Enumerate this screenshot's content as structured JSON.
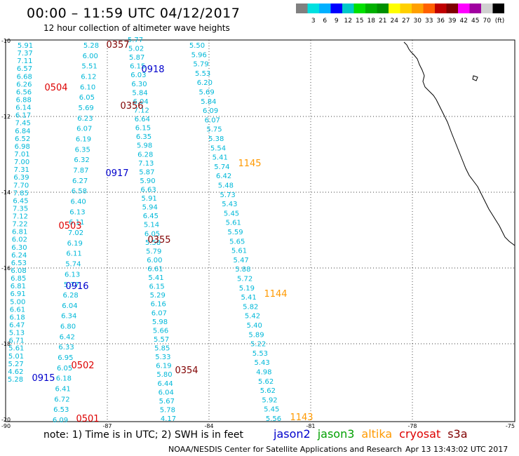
{
  "header": {
    "title": "00:00 – 11:59 UTC 04/12/2017",
    "subtitle": "12 hour collection of altimeter wave heights"
  },
  "colorbar": {
    "colors": [
      "#808080",
      "#00e0e0",
      "#00b0ff",
      "#0000ff",
      "#00c8c8",
      "#00e000",
      "#00b000",
      "#009000",
      "#ffff00",
      "#ffd000",
      "#ffa000",
      "#ff6000",
      "#c00000",
      "#800000",
      "#ff00ff",
      "#a000a0",
      "#d0d0d0",
      "#000000"
    ],
    "labels": [
      "3",
      "6",
      "9",
      "12",
      "15",
      "18",
      "21",
      "24",
      "27",
      "30",
      "33",
      "36",
      "39",
      "42",
      "45",
      "70"
    ],
    "unit": "(ft)"
  },
  "axes": {
    "lat_labels": [
      "-10",
      "-12",
      "-14",
      "-16",
      "-18",
      "-20"
    ],
    "lon_labels": [
      "-90",
      "-87",
      "-84",
      "-81",
      "-78",
      "-75"
    ]
  },
  "passes": [
    {
      "label": "0357",
      "color": "#800000"
    },
    {
      "label": "0918",
      "color": "#0000cc"
    },
    {
      "label": "0504",
      "color": "#dd0000"
    },
    {
      "label": "0356",
      "color": "#800000"
    },
    {
      "label": "1145",
      "color": "#ff9900"
    },
    {
      "label": "0917",
      "color": "#0000cc"
    },
    {
      "label": "0503",
      "color": "#dd0000"
    },
    {
      "label": "0355",
      "color": "#800000"
    },
    {
      "label": "0916",
      "color": "#0000cc"
    },
    {
      "label": "1144",
      "color": "#ff9900"
    },
    {
      "label": "0502",
      "color": "#dd0000"
    },
    {
      "label": "0354",
      "color": "#800000"
    },
    {
      "label": "0915",
      "color": "#0000cc"
    },
    {
      "label": "1143",
      "color": "#ff9900"
    },
    {
      "label": "0501",
      "color": "#dd0000"
    }
  ],
  "tracks": {
    "a": [
      "5.91",
      "7.37",
      "7.11",
      "6.57",
      "6.68",
      "6.26",
      "6.56",
      "6.88",
      "6.14",
      "6.17",
      "7.45",
      "6.84",
      "6.52",
      "6.98",
      "7.01",
      "7.00",
      "7.31",
      "6.39",
      "7.70",
      "7.85",
      "6.45",
      "7.35",
      "7.12",
      "7.22",
      "6.81",
      "6.02",
      "6.30",
      "6.24",
      "6.53",
      "6.08",
      "6.85",
      "6.81",
      "6.91",
      "5.00",
      "6.61",
      "6.18",
      "6.47",
      "5.13",
      "6.71",
      "5.61",
      "5.01",
      "5.27",
      "4.62",
      "5.28"
    ],
    "b": [
      "5.28",
      "6.00",
      "5.51",
      "6.12",
      "6.10",
      "6.05",
      "5.69",
      "6.23",
      "6.07",
      "6.19",
      "6.35",
      "6.32",
      "7.87",
      "6.27",
      "6.58",
      "6.40",
      "6.13",
      "6.11",
      "7.02",
      "6.19",
      "6.11",
      "5.74",
      "6.13",
      "5.77",
      "6.28",
      "6.04",
      "6.34",
      "6.80",
      "6.42",
      "6.33",
      "6.95",
      "6.05",
      "6.18",
      "6.41",
      "6.72",
      "6.53",
      "6.09"
    ],
    "c": [
      "5.77",
      "5.02",
      "5.87",
      "6.15",
      "6.03",
      "6.30",
      "5.84",
      "6.04",
      "7.12",
      "6.64",
      "6.15",
      "6.35",
      "5.98",
      "6.28",
      "7.13",
      "5.87",
      "5.90",
      "6.63",
      "5.91",
      "5.94",
      "6.45",
      "5.14",
      "6.05",
      "5.58",
      "5.79",
      "6.00",
      "6.61",
      "5.41",
      "6.15",
      "5.29",
      "6.16",
      "6.07",
      "5.98",
      "5.66",
      "5.57",
      "5.85",
      "5.33",
      "6.19",
      "5.80",
      "6.44",
      "6.04",
      "5.67",
      "5.78",
      "4.17"
    ],
    "d": [
      "5.50",
      "5.96",
      "5.79",
      "5.53",
      "6.20",
      "5.69",
      "5.84",
      "6.09",
      "6.07",
      "5.75",
      "5.38",
      "5.54",
      "5.41",
      "5.74",
      "6.42",
      "5.48",
      "5.73",
      "5.43",
      "5.45",
      "5.61",
      "5.59",
      "5.65",
      "5.61",
      "5.47",
      "5.88",
      "5.72",
      "5.19",
      "5.41",
      "5.82",
      "5.42",
      "5.40",
      "5.89",
      "5.22",
      "5.53",
      "5.43",
      "4.98",
      "5.62",
      "5.62",
      "5.92",
      "5.45",
      "5.56"
    ]
  },
  "footer": {
    "note": "note: 1) Time is in UTC; 2) SWH is in feet",
    "credit": "NOAA/NESDIS Center for Satellite Applications and Research",
    "timestamp": "Apr 13 13:43:02 UTC 2017",
    "legend": [
      {
        "name": "jason2",
        "color": "#0000cc"
      },
      {
        "name": "jason3",
        "color": "#00a000"
      },
      {
        "name": "altika",
        "color": "#ff9900"
      },
      {
        "name": "cryosat",
        "color": "#dd0000"
      },
      {
        "name": "s3a",
        "color": "#800000"
      }
    ]
  }
}
